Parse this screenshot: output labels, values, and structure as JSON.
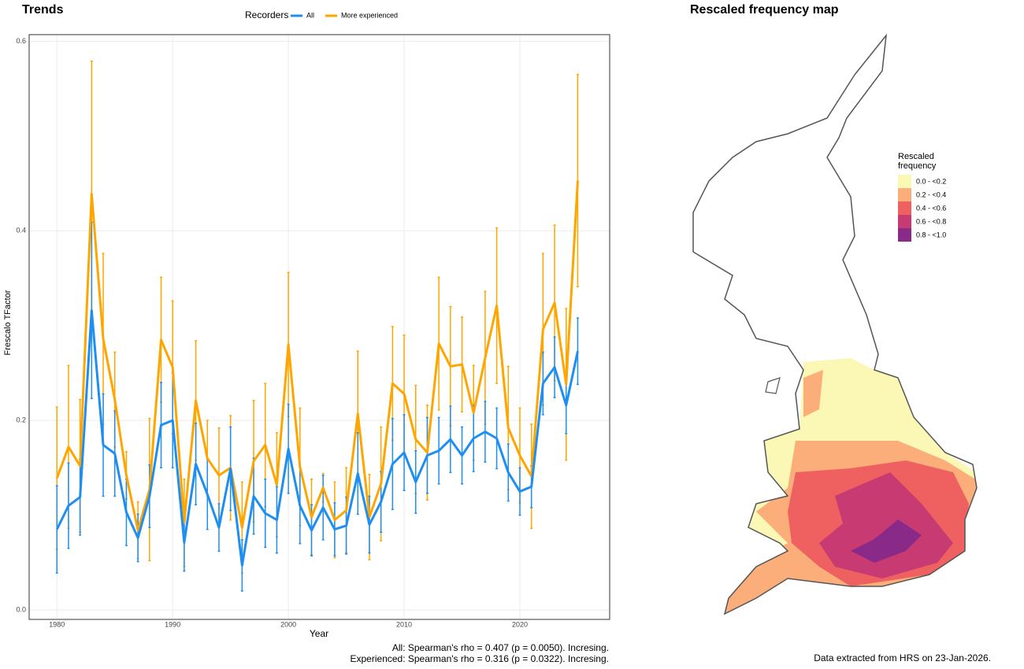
{
  "chart_data": {
    "type": "line",
    "title": "Trends",
    "x_label": "Year",
    "y_label": "Frescalo TFactor",
    "legend_title": "Recorders",
    "legend_position": "top",
    "grid": true,
    "x": [
      1980,
      1981,
      1982,
      1983,
      1984,
      1985,
      1986,
      1987,
      1988,
      1989,
      1990,
      1991,
      1992,
      1993,
      1994,
      1995,
      1996,
      1997,
      1998,
      1999,
      2000,
      2001,
      2002,
      2003,
      2004,
      2005,
      2006,
      2007,
      2008,
      2009,
      2010,
      2011,
      2012,
      2013,
      2014,
      2015,
      2016,
      2017,
      2018,
      2019,
      2020,
      2021,
      2022,
      2023,
      2024,
      2025
    ],
    "series": [
      {
        "name": "All",
        "color": "#1e8ff0",
        "values": [
          0.085,
          0.11,
          0.119,
          0.316,
          0.174,
          0.165,
          0.103,
          0.076,
          0.12,
          0.195,
          0.2,
          0.071,
          0.154,
          0.122,
          0.087,
          0.149,
          0.047,
          0.12,
          0.102,
          0.095,
          0.17,
          0.11,
          0.084,
          0.108,
          0.085,
          0.089,
          0.144,
          0.09,
          0.114,
          0.154,
          0.166,
          0.135,
          0.163,
          0.168,
          0.18,
          0.163,
          0.181,
          0.188,
          0.181,
          0.145,
          0.125,
          0.13,
          0.239,
          0.256,
          0.216,
          0.273
        ],
        "errors": [
          0.046,
          0.045,
          0.04,
          0.093,
          0.054,
          0.045,
          0.035,
          0.025,
          0.033,
          0.045,
          0.05,
          0.03,
          0.043,
          0.037,
          0.025,
          0.044,
          0.027,
          0.04,
          0.036,
          0.035,
          0.047,
          0.04,
          0.027,
          0.034,
          0.028,
          0.03,
          0.043,
          0.03,
          0.032,
          0.048,
          0.04,
          0.033,
          0.04,
          0.035,
          0.035,
          0.03,
          0.035,
          0.032,
          0.032,
          0.03,
          0.025,
          0.022,
          0.033,
          0.032,
          0.03,
          0.035
        ]
      },
      {
        "name": "More experienced",
        "color": "#ffa500",
        "values": [
          0.139,
          0.172,
          0.152,
          0.439,
          0.286,
          0.222,
          0.142,
          0.084,
          0.127,
          0.285,
          0.256,
          0.092,
          0.221,
          0.16,
          0.142,
          0.15,
          0.087,
          0.157,
          0.174,
          0.132,
          0.28,
          0.151,
          0.098,
          0.129,
          0.095,
          0.105,
          0.207,
          0.098,
          0.133,
          0.239,
          0.228,
          0.18,
          0.166,
          0.281,
          0.257,
          0.259,
          0.208,
          0.266,
          0.321,
          0.192,
          0.163,
          0.141,
          0.296,
          0.324,
          0.238,
          0.453
        ],
        "errors": [
          0.075,
          0.086,
          0.07,
          0.14,
          0.09,
          0.05,
          0.025,
          0.03,
          0.075,
          0.066,
          0.07,
          0.046,
          0.063,
          0.04,
          0.05,
          0.055,
          0.048,
          0.064,
          0.065,
          0.055,
          0.076,
          0.062,
          0.04,
          0.015,
          0.04,
          0.045,
          0.066,
          0.045,
          0.06,
          0.06,
          0.062,
          0.057,
          0.05,
          0.07,
          0.063,
          0.05,
          0.05,
          0.07,
          0.082,
          0.065,
          0.05,
          0.055,
          0.08,
          0.082,
          0.08,
          0.112
        ]
      }
    ],
    "xlim": [
      1977.6,
      2027.76
    ],
    "xticks": [
      1980,
      1990,
      2000,
      2010,
      2020
    ],
    "ylim": [
      -0.01,
      0.607
    ],
    "yticks": [
      {
        "value": 0,
        "label": "0.0"
      },
      0.2,
      0.4,
      0.6
    ],
    "annotations": [
      "All: Spearman's rho = 0.407 (p = 0.0050). Incresing.",
      "Experienced: Spearman's rho = 0.316 (p = 0.0322). Incresing."
    ]
  },
  "map": {
    "title": "Rescaled frequency map",
    "legend_title": [
      "Rescaled",
      "frequency"
    ],
    "legend": [
      {
        "label": "0.0 - <0.2",
        "color": "#fbf7b5"
      },
      {
        "label": "0.2 - <0.4",
        "color": "#fbae7a"
      },
      {
        "label": "0.4 - <0.6",
        "color": "#ee6160"
      },
      {
        "label": "0.6 - <0.8",
        "color": "#c73a72"
      },
      {
        "label": "0.8 - <1.0",
        "color": "#8a2a88"
      }
    ],
    "note": "Data extracted from HRS on 23-Jan-2026."
  }
}
